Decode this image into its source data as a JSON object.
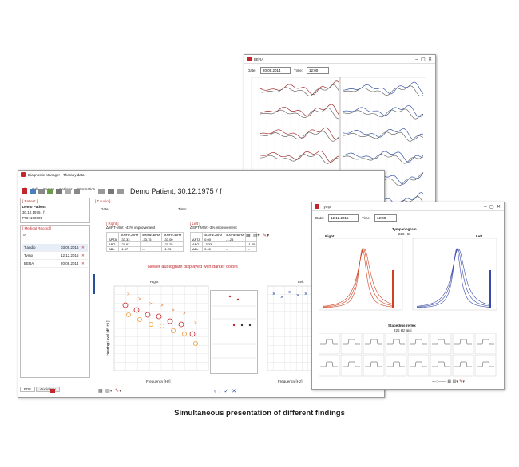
{
  "caption": "Simultaneous presentation of different findings",
  "main_window": {
    "title": "Diagnostic Manager - Therapy data",
    "menu": [
      "File",
      "Edit",
      "Search",
      "Settings",
      "Information"
    ],
    "patient_header": "Demo Patient, 30.12.1975 / f",
    "patient_panel": {
      "heading": "[ Patient ]",
      "name": "Demo Patient",
      "birth": "30.12.1975 / f",
      "pid": "PID: 100005"
    },
    "record_heading": "[ Medical Record ]",
    "records": [
      [
        "T.audio",
        "03.09.2016"
      ],
      [
        "Tymp",
        "12.12.2015"
      ],
      [
        "BERA",
        "20.09.2014"
      ]
    ],
    "tabs": [
      "PDF",
      "Audiology"
    ],
    "exam": {
      "heading": "[ T.audio ]",
      "date_label": "Date:",
      "time_label": "Time:",
      "right": {
        "heading": "[ Right ]",
        "summary": "ΔSPT-MW: -42% improvement",
        "columns": [
          "500Hz-2kHz",
          "500Hz-4kHz",
          "500Hz-4kHz"
        ],
        "rows": [
          [
            "ΔPTA",
            "-33.33",
            "-33.75",
            "-33.00"
          ],
          [
            "ΔBG",
            "-21.67",
            "--",
            "-21.25"
          ],
          [
            "ΔBL",
            "-1.67",
            "--",
            "-1.25"
          ]
        ]
      },
      "left": {
        "heading": "[ Left ]",
        "summary": "ΔSPT-MW: -3% improvement",
        "columns": [
          "500Hz-2kHz",
          "500Hz-4kHz",
          ""
        ],
        "rows": [
          [
            "ΔPTA",
            "0.00",
            "-1.25",
            ""
          ],
          [
            "ΔBG",
            "-3.33",
            "--",
            "-1.25"
          ],
          [
            "ΔBL",
            "0.00",
            "--",
            "--"
          ]
        ]
      },
      "note": "Newer audiogram displayed with darker colors",
      "right_chart": "Right",
      "left_chart": "Left",
      "x_label": "Frequency [Hz]",
      "y_label": "Hearing Level [dB HL]"
    }
  },
  "bera_window": {
    "title": "BERA",
    "date_label": "Date:",
    "date": "20.09.2014",
    "time_label": "Time:",
    "time": "12:00"
  },
  "tymp_window": {
    "title": "Tymp",
    "date_label": "Date:",
    "date": "12.12.2015",
    "time_label": "Time:",
    "time": "12:00",
    "tympanogram": "Tympanogram",
    "tymp_freq": "226 Hz",
    "right": "Right",
    "left": "Left",
    "reflex": "Stapedius reflex",
    "reflex_mode": "226 Hz Ipsi"
  }
}
